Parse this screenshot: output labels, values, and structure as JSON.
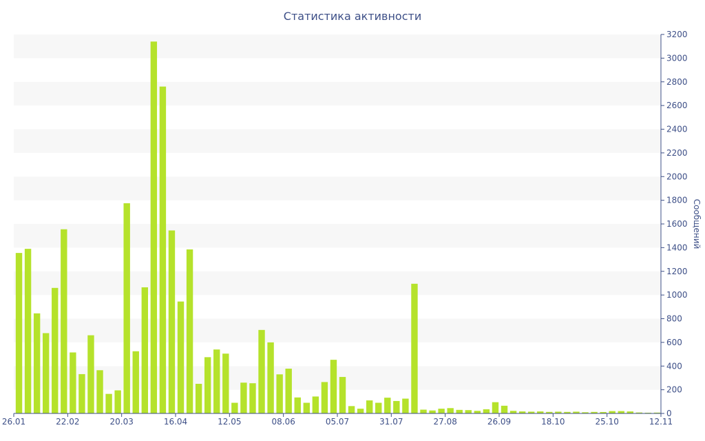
{
  "chart_data": {
    "type": "bar",
    "title": "Статистика активности",
    "xlabel": "",
    "ylabel": "Сообщений",
    "ylim": [
      0,
      3200
    ],
    "y_axis_side": "right",
    "y_ticks": [
      0,
      200,
      400,
      600,
      800,
      1000,
      1200,
      1400,
      1600,
      1800,
      2000,
      2200,
      2400,
      2600,
      2800,
      3000,
      3200
    ],
    "x_tick_labels": [
      {
        "label": "26.01",
        "index": 0
      },
      {
        "label": "22.02",
        "index": 6
      },
      {
        "label": "20.03",
        "index": 12
      },
      {
        "label": "16.04",
        "index": 18
      },
      {
        "label": "12.05",
        "index": 24
      },
      {
        "label": "08.06",
        "index": 30
      },
      {
        "label": "05.07",
        "index": 36
      },
      {
        "label": "31.07",
        "index": 42
      },
      {
        "label": "27.08",
        "index": 48
      },
      {
        "label": "26.09",
        "index": 54
      },
      {
        "label": "18.10",
        "index": 60
      },
      {
        "label": "25.10",
        "index": 66
      },
      {
        "label": "12.11",
        "index": 72
      }
    ],
    "values": [
      1355,
      1390,
      845,
      678,
      1060,
      1555,
      515,
      332,
      660,
      365,
      165,
      195,
      1775,
      525,
      1065,
      3140,
      2760,
      1545,
      945,
      1385,
      250,
      475,
      540,
      505,
      90,
      260,
      255,
      705,
      600,
      330,
      378,
      135,
      90,
      143,
      265,
      453,
      308,
      62,
      40,
      110,
      90,
      133,
      105,
      125,
      1095,
      32,
      25,
      40,
      45,
      30,
      28,
      22,
      35,
      95,
      65,
      22,
      17,
      15,
      17,
      13,
      15,
      13,
      15,
      10,
      13,
      12,
      20,
      20,
      17,
      8,
      6,
      7
    ],
    "bar_color": "#b5e22b",
    "grid": "alternating bands",
    "band_colors": [
      "#f7f7f7",
      "#ffffff"
    ],
    "axis_color": "#3d4f87"
  }
}
